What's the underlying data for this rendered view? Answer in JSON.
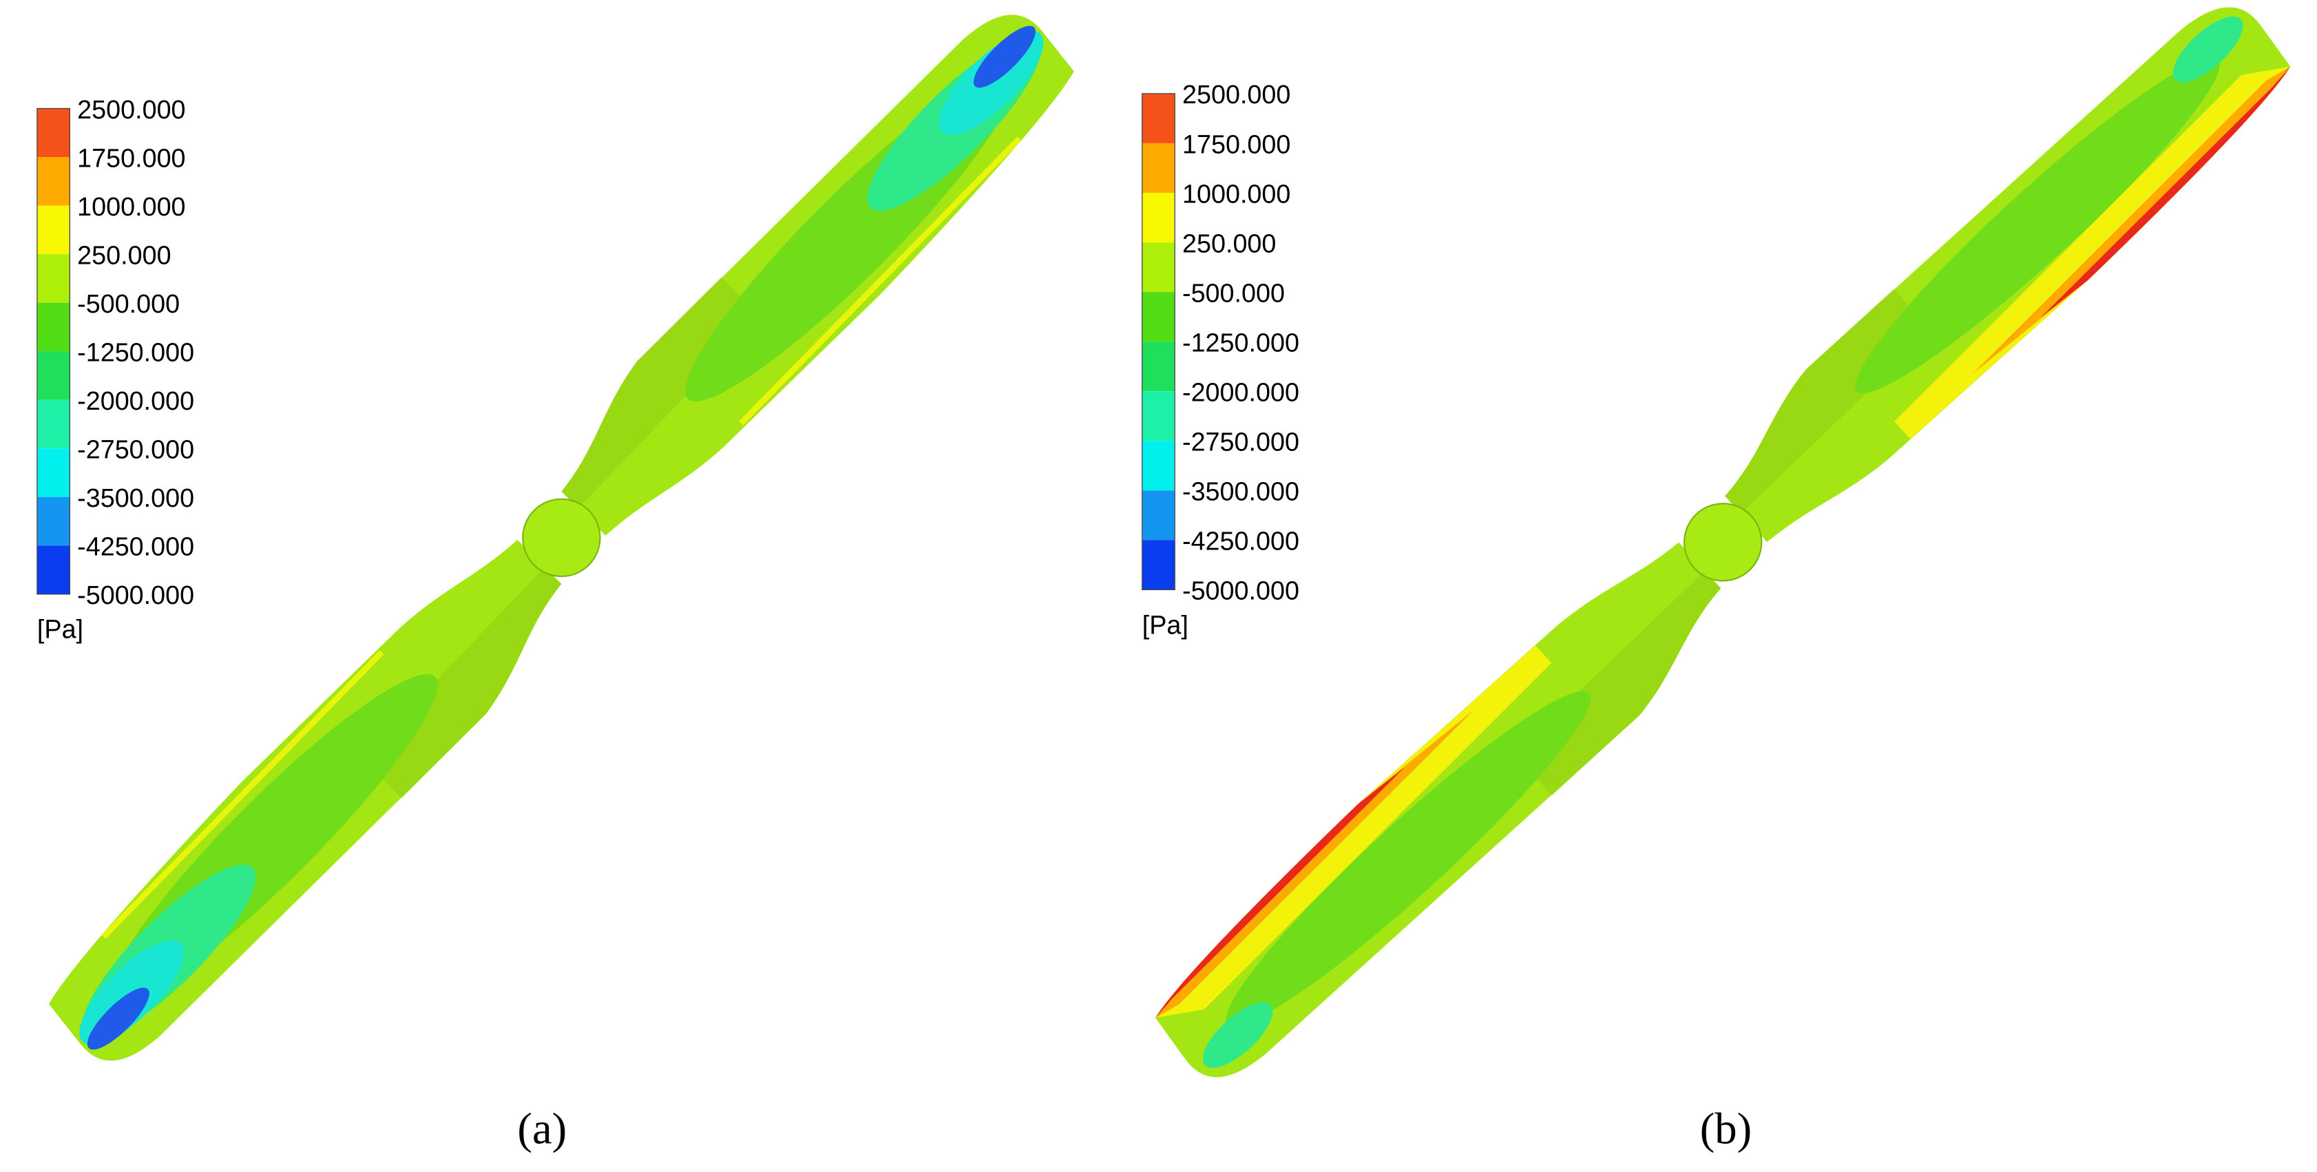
{
  "panels": [
    {
      "label": "(a)",
      "legend": {
        "values": [
          "2500.000",
          "1750.000",
          "1000.000",
          "250.000",
          "-500.000",
          "-1250.000",
          "-2000.000",
          "-2750.000",
          "-3500.000",
          "-4250.000",
          "-5000.000"
        ],
        "unit": "[Pa]"
      }
    },
    {
      "label": "(b)",
      "legend": {
        "values": [
          "2500.000",
          "1750.000",
          "1000.000",
          "250.000",
          "-500.000",
          "-1250.000",
          "-2000.000",
          "-2750.000",
          "-3500.000",
          "-4250.000",
          "-5000.000"
        ],
        "unit": "[Pa]"
      }
    }
  ]
}
